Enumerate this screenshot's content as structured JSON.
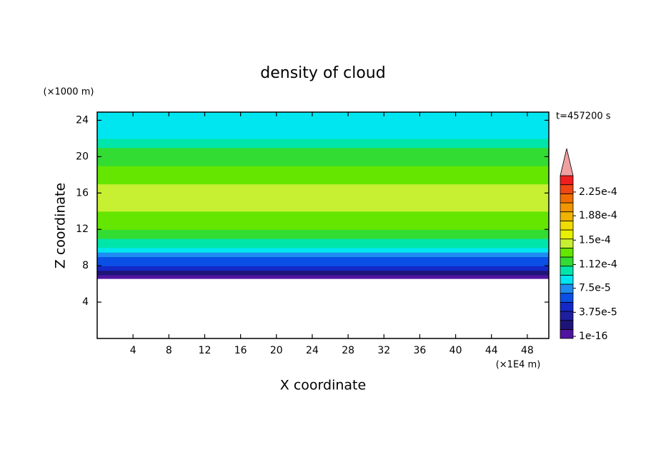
{
  "chart_data": {
    "type": "profile-heatmap",
    "title": "density of cloud",
    "x_label": "X coordinate",
    "y_label": "Z coordinate",
    "x_unit": "(×1E4 m)",
    "y_unit": "(×1000 m)",
    "time_label": "t=457200 s",
    "xlim": [
      0,
      50.4
    ],
    "ylim": [
      0,
      24.9
    ],
    "xticks": [
      4,
      8,
      12,
      16,
      20,
      24,
      28,
      32,
      36,
      40,
      44,
      48
    ],
    "yticks": [
      4,
      8,
      12,
      16,
      20,
      24
    ],
    "z": [
      6.6,
      7,
      7.5,
      8,
      8.5,
      9,
      9.5,
      10,
      11,
      12,
      13,
      14,
      15,
      16,
      17,
      18,
      19,
      20,
      21,
      22,
      23,
      24,
      24.9
    ],
    "values": [
      1e-16,
      2e-05,
      4e-05,
      5.5e-05,
      6.5e-05,
      7.5e-05,
      8.5e-05,
      0.0001,
      0.000112,
      0.000125,
      0.000135,
      0.000145,
      0.000145,
      0.000138,
      0.00013,
      0.000125,
      0.000122,
      0.000115,
      0.000105,
      9.5e-05,
      9e-05,
      8.8e-05,
      8.8e-05
    ],
    "colorbar": {
      "clim": [
        -3.3e-06,
        0.0002505
      ],
      "colors": [
        "#5014a0",
        "#1e1478",
        "#1e1ea0",
        "#1428c8",
        "#0a50e6",
        "#1e8cf0",
        "#00e6f0",
        "#00e6aa",
        "#32dc32",
        "#64e600",
        "#c8f032",
        "#e6f000",
        "#f0dc00",
        "#f0b400",
        "#f09600",
        "#f06e00",
        "#f04614",
        "#f01e1e"
      ],
      "over_color": "#f0a0a0",
      "ticks": [
        {
          "value": 1e-16,
          "label": "1e-16"
        },
        {
          "value": 3.75e-05,
          "label": "3.75e-5"
        },
        {
          "value": 7.5e-05,
          "label": "7.5e-5"
        },
        {
          "value": 0.000112,
          "label": "1.12e-4"
        },
        {
          "value": 0.00015,
          "label": "1.5e-4"
        },
        {
          "value": 0.000188,
          "label": "1.88e-4"
        },
        {
          "value": 0.000225,
          "label": "2.25e-4"
        }
      ]
    }
  }
}
